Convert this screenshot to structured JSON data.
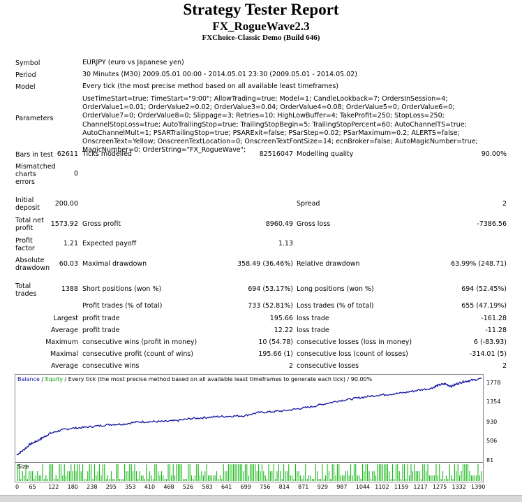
{
  "header": {
    "title": "Strategy Tester Report",
    "ea_name": "FX_RogueWave2.3",
    "server": "FXChoice-Classic Demo (Build 646)"
  },
  "info": {
    "symbol_label": "Symbol",
    "symbol_value": "EURJPY (euro vs Japanese yen)",
    "period_label": "Period",
    "period_value": "30 Minutes (M30) 2009.05.01 00:00 - 2014.05.01 23:30 (2009.05.01 - 2014.05.02)",
    "model_label": "Model",
    "model_value": "Every tick (the most precise method based on all available least timeframes)",
    "parameters_label": "Parameters",
    "parameters_value": "UseTimeStart=true; TimeStart=\"9:00\"; AllowTrading=true; Model=1; CandleLookback=7; OrdersInSession=4; OrderValue1=0.01; OrderValue2=0.02; OrderValue3=0.04; OrderValue4=0.08; OrderValue5=0; OrderValue6=0; OrderValue7=0; OrderValue8=0; Slippage=3; Retries=10; HighLowBuffer=4; TakeProfit=250; StopLoss=250; ChannelStopLoss=true; AutoTrailingStop=true; TrailingStopBegin=5; TrailingStopPercent=60; AutoChannelTS=true; AutoChannelMult=1; PSARTrailingStop=true; PSARExit=false; PSarStep=0.02; PSarMaximum=0.2; ALERTS=false; OnscreenText=Yellow; OnscreenTextLocation=0; OnscreenTextFontSize=14; ecnBroker=false; AutoMagicNumber=true; MagicNumber=0; OrderString=\"FX_RogueWave\";"
  },
  "stats": {
    "bars_label": "Bars in test",
    "bars_value": "62611",
    "ticks_label": "Ticks modelled",
    "ticks_value": "82516047",
    "quality_label": "Modelling quality",
    "quality_value": "90.00%",
    "mismatch_label_1": "Mismatched",
    "mismatch_label_2": "charts",
    "mismatch_label_3": "errors",
    "mismatch_value": "0",
    "deposit_label_1": "Initial",
    "deposit_label_2": "deposit",
    "deposit_value": "200.00",
    "spread_label": "Spread",
    "spread_value": "2",
    "netprofit_label_1": "Total net",
    "netprofit_label_2": "profit",
    "netprofit_value": "1573.92",
    "grossprofit_label": "Gross profit",
    "grossprofit_value": "8960.49",
    "grossloss_label": "Gross loss",
    "grossloss_value": "-7386.56",
    "pf_label_1": "Profit",
    "pf_label_2": "factor",
    "pf_value": "1.21",
    "payoff_label": "Expected payoff",
    "payoff_value": "1.13",
    "absdd_label_1": "Absolute",
    "absdd_label_2": "drawdown",
    "absdd_value": "60.03",
    "maxdd_label": "Maximal drawdown",
    "maxdd_value": "358.49 (36.46%)",
    "reldd_label": "Relative drawdown",
    "reldd_value": "63.99% (248.71)",
    "trades_label_1": "Total",
    "trades_label_2": "trades",
    "trades_value": "1388",
    "short_label": "Short positions (won %)",
    "short_value": "694 (53.17%)",
    "long_label": "Long positions (won %)",
    "long_value": "694 (52.45%)",
    "profit_trades_label": "Profit trades (% of total)",
    "profit_trades_value": "733 (52.81%)",
    "loss_trades_label": "Loss trades (% of total)",
    "loss_trades_value": "655 (47.19%)",
    "largest_label": "Largest",
    "largest_pt_label": "profit trade",
    "largest_pt_value": "195.66",
    "largest_lt_label": "loss trade",
    "largest_lt_value": "-161.28",
    "average_label": "Average",
    "average_pt_label": "profit trade",
    "average_pt_value": "12.22",
    "average_lt_label": "loss trade",
    "average_lt_value": "-11.28",
    "maximum_label": "Maximum",
    "max_cw_label": "consecutive wins (profit in money)",
    "max_cw_value": "10 (54.78)",
    "max_cl_label": "consecutive losses (loss in money)",
    "max_cl_value": "6 (-83.93)",
    "maximal_label": "Maximal",
    "maxl_cp_label": "consecutive profit (count of wins)",
    "maxl_cp_value": "195.66 (1)",
    "maxl_cl_label": "consecutive loss (count of losses)",
    "maxl_cl_value": "-314.01 (5)",
    "avg2_label": "Average",
    "avg_cw_label": "consecutive wins",
    "avg_cw_value": "2",
    "avg_cl_label": "consecutive losses",
    "avg_cl_value": "2"
  },
  "chart_data": {
    "type": "line",
    "legend_balance": "Balance",
    "legend_sep": " / ",
    "legend_equity": "Equity",
    "legend_rest": " / Every tick (the most precise method based on all available least timeframes to generate each tick) / 90.00%",
    "size_label": "Size",
    "y_ticks": [
      "1778",
      "1354",
      "930",
      "506",
      "81"
    ],
    "x_ticks": [
      "0",
      "65",
      "122",
      "180",
      "238",
      "295",
      "353",
      "410",
      "468",
      "526",
      "583",
      "641",
      "699",
      "756",
      "814",
      "871",
      "929",
      "987",
      "1044",
      "1102",
      "1159",
      "1217",
      "1275",
      "1332",
      "1390"
    ],
    "ylim": [
      81,
      1778
    ],
    "xlim": [
      0,
      1390
    ],
    "series": [
      {
        "values_x": [
          0,
          20,
          40,
          60,
          80,
          100,
          130,
          160,
          200,
          240,
          280,
          320,
          360,
          400,
          440,
          480,
          520,
          560,
          600,
          640,
          680,
          720,
          760,
          800,
          840,
          880,
          920,
          960,
          1000,
          1040,
          1080,
          1120,
          1160,
          1200,
          1240,
          1260,
          1280,
          1300,
          1320,
          1340,
          1360,
          1390
        ],
        "values_y": [
          200,
          300,
          420,
          480,
          560,
          640,
          700,
          740,
          760,
          790,
          820,
          830,
          870,
          880,
          880,
          900,
          940,
          960,
          980,
          990,
          1000,
          1060,
          1080,
          1100,
          1140,
          1180,
          1240,
          1300,
          1340,
          1380,
          1420,
          1440,
          1470,
          1520,
          1560,
          1620,
          1650,
          1600,
          1660,
          1700,
          1720,
          1760
        ],
        "color": "#1010a0"
      }
    ],
    "balance_color": "#1010a0",
    "equity_color": "#00a000",
    "size_color": "#00b000"
  }
}
